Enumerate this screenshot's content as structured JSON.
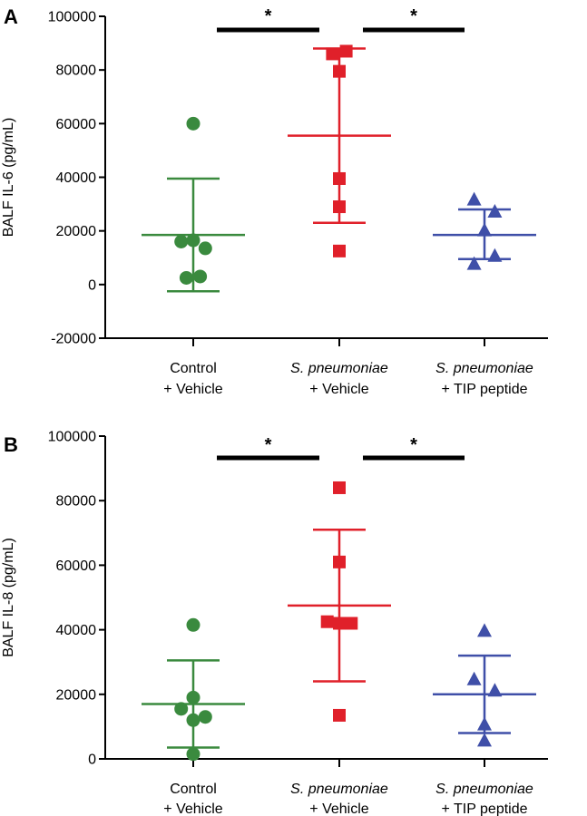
{
  "chart_data": [
    {
      "type": "scatter",
      "panel": "A",
      "ylabel": "BALF IL-6 (pg/mL)",
      "ylim": [
        -20000,
        100000
      ],
      "yticks": [
        -20000,
        0,
        20000,
        40000,
        60000,
        80000,
        100000
      ],
      "categories": [
        {
          "line1": "Control",
          "italic": false,
          "line2": "+ Vehicle"
        },
        {
          "line1": "S. pneumoniae",
          "italic": true,
          "line2": "+ Vehicle"
        },
        {
          "line1": "S. pneumoniae",
          "italic": true,
          "line2": "+ TIP peptide"
        }
      ],
      "series": [
        {
          "marker": "circle",
          "color": "#3a8a3e",
          "points": [
            60000,
            16000,
            16500,
            13500,
            2500,
            3000
          ],
          "offsets": [
            0,
            -0.35,
            0,
            0.35,
            -0.2,
            0.2
          ],
          "mean": 18500,
          "sd_low": -2500,
          "sd_high": 39500
        },
        {
          "marker": "square",
          "color": "#e0202a",
          "points": [
            86000,
            87000,
            79500,
            39500,
            29000,
            12500
          ],
          "offsets": [
            -0.2,
            0.2,
            0,
            0,
            0,
            0
          ],
          "mean": 55500,
          "sd_low": 23000,
          "sd_high": 88000
        },
        {
          "marker": "triangle",
          "color": "#3f4fa8",
          "points": [
            31500,
            27000,
            20000,
            10500,
            7500
          ],
          "offsets": [
            -0.3,
            0.3,
            0,
            0.3,
            -0.3
          ],
          "mean": 18500,
          "sd_low": 9500,
          "sd_high": 28000
        }
      ],
      "significance": [
        {
          "from": 0,
          "to": 1,
          "label": "*"
        },
        {
          "from": 1,
          "to": 2,
          "label": "*"
        }
      ]
    },
    {
      "type": "scatter",
      "panel": "B",
      "ylabel": "BALF IL-8 (pg/mL)",
      "ylim": [
        0,
        100000
      ],
      "yticks": [
        0,
        20000,
        40000,
        60000,
        80000,
        100000
      ],
      "categories": [
        {
          "line1": "Control",
          "italic": false,
          "line2": "+ Vehicle"
        },
        {
          "line1": "S. pneumoniae",
          "italic": true,
          "line2": "+ Vehicle"
        },
        {
          "line1": "S. pneumoniae",
          "italic": true,
          "line2": "+ TIP peptide"
        }
      ],
      "series": [
        {
          "marker": "circle",
          "color": "#3a8a3e",
          "points": [
            41500,
            19000,
            15500,
            13000,
            12000,
            1500
          ],
          "offsets": [
            0,
            0,
            -0.35,
            0.35,
            0,
            0
          ],
          "mean": 17000,
          "sd_low": 3500,
          "sd_high": 30500
        },
        {
          "marker": "square",
          "color": "#e0202a",
          "points": [
            84000,
            61000,
            42500,
            42000,
            42000,
            13500
          ],
          "offsets": [
            0,
            0,
            -0.35,
            0,
            0.35,
            0
          ],
          "mean": 47500,
          "sd_low": 24000,
          "sd_high": 71000
        },
        {
          "marker": "triangle",
          "color": "#3f4fa8",
          "points": [
            39500,
            24500,
            21000,
            10500,
            5500
          ],
          "offsets": [
            0,
            -0.3,
            0.3,
            0,
            0
          ],
          "mean": 20000,
          "sd_low": 8000,
          "sd_high": 32000
        }
      ],
      "significance": [
        {
          "from": 0,
          "to": 1,
          "label": "*"
        },
        {
          "from": 1,
          "to": 2,
          "label": "*"
        }
      ]
    }
  ]
}
